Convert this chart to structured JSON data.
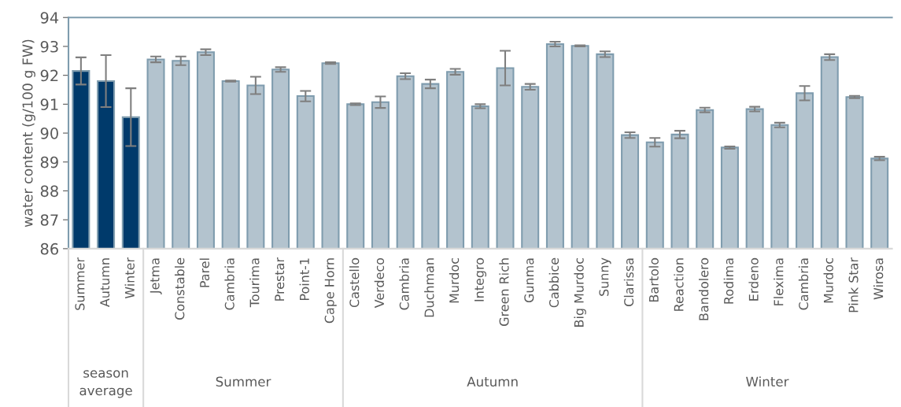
{
  "chart_data": {
    "type": "bar",
    "ylabel": "water content (g/100 g FW)",
    "categories": [
      "Summer",
      "Autumn",
      "Winter",
      "Jetma",
      "Constable",
      "Parel",
      "Cambria",
      "Tourima",
      "Prestar",
      "Point-1",
      "Cape Horn",
      "Castello",
      "Verdeco",
      "Cambria",
      "Duchman",
      "Murdoc",
      "Integro",
      "Green Rich",
      "Gunma",
      "Cabbice",
      "Big Murdoc",
      "Sunny",
      "Clarissa",
      "Bartolo",
      "Reaction",
      "Bandolero",
      "Rodima",
      "Erdeno",
      "Flexima",
      "Cambria",
      "Murdoc",
      "Pink Star",
      "Wirosa"
    ],
    "values": [
      92.15,
      91.8,
      90.55,
      92.55,
      92.5,
      92.8,
      91.8,
      91.65,
      92.2,
      91.28,
      92.42,
      91.0,
      91.07,
      91.97,
      91.7,
      92.12,
      90.93,
      92.25,
      91.6,
      93.08,
      93.02,
      92.73,
      89.93,
      89.68,
      89.95,
      90.8,
      89.5,
      90.83,
      90.28,
      91.38,
      92.63,
      91.25,
      89.12
    ],
    "errors": [
      0.47,
      0.9,
      1.0,
      0.1,
      0.15,
      0.1,
      0.02,
      0.3,
      0.08,
      0.18,
      0.03,
      0.03,
      0.2,
      0.1,
      0.15,
      0.1,
      0.07,
      0.6,
      0.1,
      0.08,
      0.02,
      0.1,
      0.1,
      0.15,
      0.13,
      0.08,
      0.04,
      0.08,
      0.08,
      0.25,
      0.1,
      0.04,
      0.06
    ],
    "colors": [
      "#003a6b",
      "#003a6b",
      "#003a6b",
      "#b3c3ce",
      "#b3c3ce",
      "#b3c3ce",
      "#b3c3ce",
      "#b3c3ce",
      "#b3c3ce",
      "#b3c3ce",
      "#b3c3ce",
      "#b3c3ce",
      "#b3c3ce",
      "#b3c3ce",
      "#b3c3ce",
      "#b3c3ce",
      "#b3c3ce",
      "#b3c3ce",
      "#b3c3ce",
      "#b3c3ce",
      "#b3c3ce",
      "#b3c3ce",
      "#b3c3ce",
      "#b3c3ce",
      "#b3c3ce",
      "#b3c3ce",
      "#b3c3ce",
      "#b3c3ce",
      "#b3c3ce",
      "#b3c3ce",
      "#b3c3ce",
      "#b3c3ce",
      "#b3c3ce"
    ],
    "ylim": [
      86,
      94
    ],
    "yticks": [
      86,
      87,
      88,
      89,
      90,
      91,
      92,
      93,
      94
    ],
    "grid": false,
    "annotations": [
      "season\naverage",
      "Summer",
      "Autumn",
      "Winter"
    ]
  }
}
